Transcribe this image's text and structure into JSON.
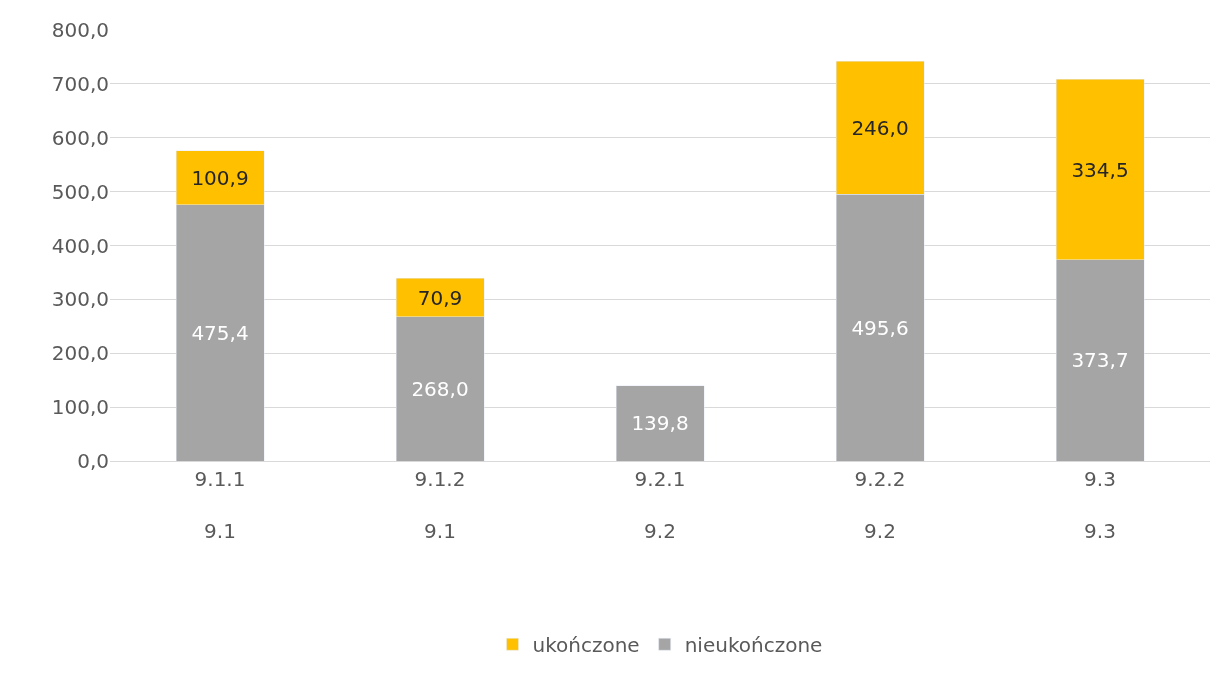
{
  "chart_data": {
    "type": "bar",
    "stacked": true,
    "categories": [
      "9.1.1\n9.1",
      "9.1.2\n9.1",
      "9.2.1\n9.2",
      "9.2.2\n9.2",
      "9.3\n9.3"
    ],
    "series": [
      {
        "name": "nieukończone",
        "color": "#a5a5a5",
        "values": [
          475.4,
          268.0,
          139.8,
          495.6,
          373.7
        ],
        "value_labels": [
          "475,4",
          "268,0",
          "139,8",
          "495,6",
          "373,7"
        ]
      },
      {
        "name": "ukończone",
        "color": "#ffc000",
        "values": [
          100.9,
          70.9,
          null,
          246.0,
          334.5
        ],
        "value_labels": [
          "100,9",
          "70,9",
          null,
          "246,0",
          "334,5"
        ]
      }
    ],
    "ylim": [
      0,
      800
    ],
    "yticks": [
      {
        "value": 0,
        "label": "0,0"
      },
      {
        "value": 100,
        "label": "100,0"
      },
      {
        "value": 200,
        "label": "200,0"
      },
      {
        "value": 300,
        "label": "300,0"
      },
      {
        "value": 400,
        "label": "400,0"
      },
      {
        "value": 500,
        "label": "500,0"
      },
      {
        "value": 600,
        "label": "600,0"
      },
      {
        "value": 700,
        "label": "700,0"
      },
      {
        "value": 800,
        "label": "800,0"
      }
    ],
    "grid": "y",
    "legend": "bottom"
  }
}
